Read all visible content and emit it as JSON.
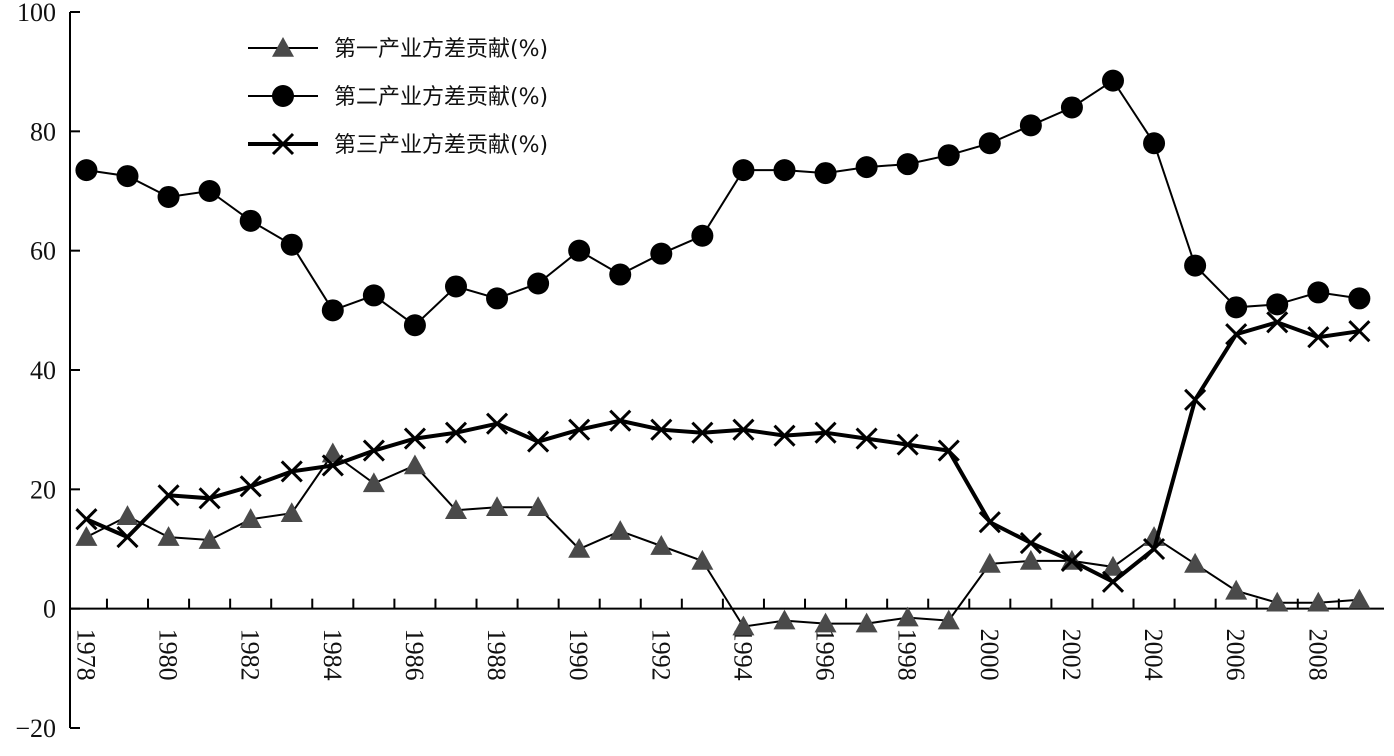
{
  "chart_data": {
    "type": "line",
    "title": "",
    "xlabel": "",
    "ylabel": "",
    "x": [
      1978,
      1979,
      1980,
      1981,
      1982,
      1983,
      1984,
      1985,
      1986,
      1987,
      1988,
      1989,
      1990,
      1991,
      1992,
      1993,
      1994,
      1995,
      1996,
      1997,
      1998,
      1999,
      2000,
      2001,
      2002,
      2003,
      2004,
      2005,
      2006,
      2007,
      2008,
      2009
    ],
    "x_tick_labels": [
      "1978",
      "1980",
      "1982",
      "1984",
      "1986",
      "1988",
      "1990",
      "1992",
      "1994",
      "1996",
      "1998",
      "2000",
      "2002",
      "2004",
      "2006",
      "2008"
    ],
    "x_tick_values": [
      1978,
      1980,
      1982,
      1984,
      1986,
      1988,
      1990,
      1992,
      1994,
      1996,
      1998,
      2000,
      2002,
      2004,
      2006,
      2008
    ],
    "ylim": [
      -20,
      100
    ],
    "y_ticks": [
      -20,
      0,
      20,
      40,
      60,
      80,
      100
    ],
    "y_tick_labels": [
      "−20",
      "0",
      "20",
      "40",
      "60",
      "80",
      "100"
    ],
    "grid": false,
    "legend_position": "top-left",
    "series": [
      {
        "name": "第一产业方差贡献(%)",
        "marker": "triangle",
        "color": "#4a4a4a",
        "values": [
          12,
          15.5,
          12,
          11.5,
          15,
          16,
          26,
          21,
          24,
          16.5,
          17,
          17,
          10,
          13,
          10.5,
          8,
          -3,
          -2,
          -2.5,
          -2.5,
          -1.5,
          -2,
          7.5,
          8,
          8,
          7,
          12,
          7.5,
          3,
          1,
          1,
          1.5
        ]
      },
      {
        "name": "第二产业方差贡献(%)",
        "marker": "circle",
        "color": "#000000",
        "values": [
          73.5,
          72.5,
          69,
          70,
          65,
          61,
          50,
          52.5,
          47.5,
          54,
          52,
          54.5,
          60,
          56,
          59.5,
          62.5,
          73.5,
          73.5,
          73,
          74,
          74.5,
          76,
          78,
          81,
          84,
          88.5,
          78,
          57.5,
          50.5,
          51,
          53,
          52
        ]
      },
      {
        "name": "第三产业方差贡献(%)",
        "marker": "cross",
        "color": "#000000",
        "values": [
          15,
          12,
          19,
          18.5,
          20.5,
          23,
          24,
          26.5,
          28.5,
          29.5,
          31,
          28,
          30,
          31.5,
          30,
          29.5,
          30,
          29,
          29.5,
          28.5,
          27.5,
          26.5,
          14.5,
          11,
          8,
          4.5,
          10,
          35,
          46,
          48,
          45.5,
          46.5
        ]
      }
    ]
  }
}
